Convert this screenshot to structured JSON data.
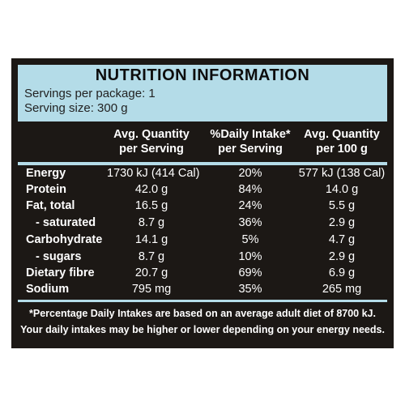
{
  "header": {
    "title": "NUTRITION INFORMATION",
    "servings_per_package": "Servings per package: 1",
    "serving_size": "Serving size: 300 g"
  },
  "columns": [
    {
      "line1": "Avg. Quantity",
      "line2": "per Serving"
    },
    {
      "line1": "%Daily Intake*",
      "line2": "per Serving"
    },
    {
      "line1": "Avg. Quantity",
      "line2": "per 100 g"
    }
  ],
  "rows": [
    {
      "name": "Energy",
      "per_serving": "1730 kJ (414 Cal)",
      "daily_intake": "20%",
      "per_100g": "577 kJ (138 Cal)"
    },
    {
      "name": "Protein",
      "per_serving": "42.0 g",
      "daily_intake": "84%",
      "per_100g": "14.0 g"
    },
    {
      "name": "Fat, total",
      "per_serving": "16.5 g",
      "daily_intake": "24%",
      "per_100g": "5.5 g"
    },
    {
      "name": "- saturated",
      "per_serving": "8.7 g",
      "daily_intake": "36%",
      "per_100g": "2.9 g"
    },
    {
      "name": "Carbohydrate",
      "per_serving": "14.1 g",
      "daily_intake": "5%",
      "per_100g": "4.7 g"
    },
    {
      "name": "- sugars",
      "per_serving": "8.7 g",
      "daily_intake": "10%",
      "per_100g": "2.9 g"
    },
    {
      "name": "Dietary fibre",
      "per_serving": "20.7 g",
      "daily_intake": "69%",
      "per_100g": "6.9 g"
    },
    {
      "name": "Sodium",
      "per_serving": "795 mg",
      "daily_intake": "35%",
      "per_100g": "265 mg"
    }
  ],
  "footnote": {
    "line1": "*Percentage Daily Intakes are based on an average adult diet of 8700 kJ.",
    "line2": "Your daily intakes may be higher or lower depending on your energy needs."
  },
  "colors": {
    "panel_bg": "#1c1815",
    "header_bg": "#b4dce8",
    "text_light": "#ffffff"
  }
}
